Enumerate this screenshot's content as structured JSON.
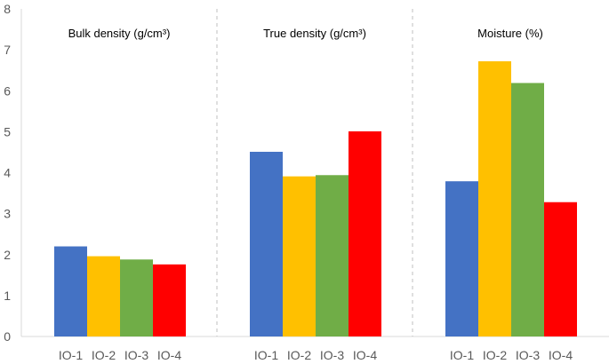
{
  "chart_data": {
    "type": "bar",
    "ylim": [
      0,
      8
    ],
    "yticks": [
      0,
      1,
      2,
      3,
      4,
      5,
      6,
      7,
      8
    ],
    "grid": false,
    "categories": [
      "IO-1",
      "IO-2",
      "IO-3",
      "IO-4"
    ],
    "colors": [
      "#4472C4",
      "#FFC000",
      "#70AD47",
      "#FF0000"
    ],
    "panels": [
      {
        "title": "Bulk density (g/cm³)",
        "values": [
          2.2,
          1.96,
          1.88,
          1.76
        ]
      },
      {
        "title": "True density (g/cm³)",
        "values": [
          4.51,
          3.91,
          3.94,
          5.01
        ]
      },
      {
        "title": "Moisture (%)",
        "values": [
          3.79,
          6.72,
          6.19,
          3.28
        ]
      }
    ]
  }
}
